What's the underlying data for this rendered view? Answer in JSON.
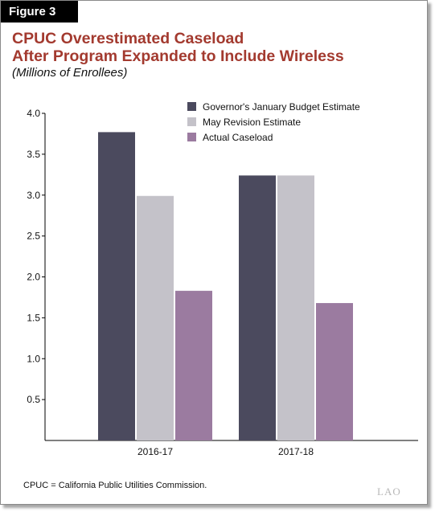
{
  "figure_label": "Figure 3",
  "title_line1": "CPUC Overestimated Caseload",
  "title_line2": "After Program Expanded to Include Wireless",
  "subtitle": "(Millions of Enrollees)",
  "footnote": "CPUC = California Public Utilities Commission.",
  "logo_text": "LAO",
  "chart_data": {
    "type": "bar",
    "categories": [
      "2016-17",
      "2017-18"
    ],
    "series": [
      {
        "name": "Governor's January Budget Estimate",
        "color": "#4b4a5e",
        "values": [
          3.77,
          3.24
        ]
      },
      {
        "name": "May Revision Estimate",
        "color": "#c4c2c9",
        "values": [
          2.99,
          3.24
        ]
      },
      {
        "name": "Actual Caseload",
        "color": "#9b7ba0",
        "values": [
          1.83,
          1.68
        ]
      }
    ],
    "yticks": [
      "0.5",
      "1.0",
      "1.5",
      "2.0",
      "2.5",
      "3.0",
      "3.5",
      "4.0"
    ],
    "ylim": [
      0,
      4.0
    ],
    "legend_position": "top-right",
    "grid": false
  }
}
